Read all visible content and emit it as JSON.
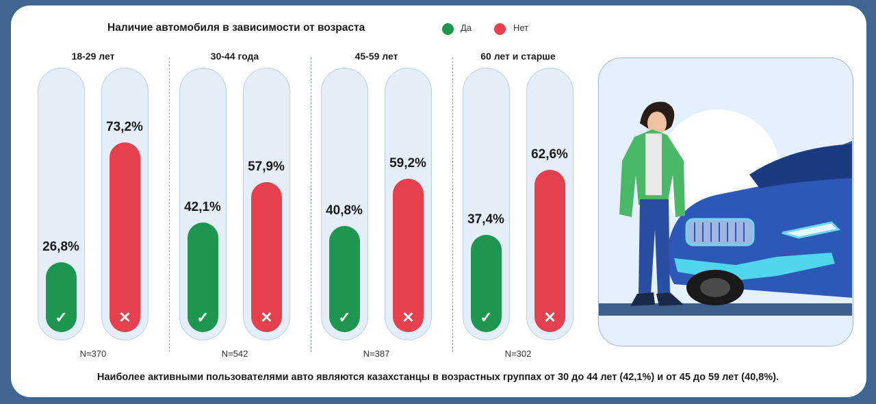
{
  "title": "Наличие автомобиля в зависимости от возраста",
  "legend": [
    {
      "label": "Да",
      "color": "#1e9650"
    },
    {
      "label": "Нет",
      "color": "#e5404e"
    }
  ],
  "marks": {
    "yes": "✓",
    "no": "✕"
  },
  "chart_data": {
    "type": "bar",
    "categories": [
      "18-29 лет",
      "30-44 года",
      "45-59 лет",
      "60 лет и старше"
    ],
    "series": [
      {
        "name": "Да",
        "values": [
          26.8,
          42.1,
          40.8,
          37.4
        ],
        "labels": [
          "26,8%",
          "42,1%",
          "40,8%",
          "37,4%"
        ]
      },
      {
        "name": "Нет",
        "values": [
          73.2,
          57.9,
          59.2,
          62.6
        ],
        "labels": [
          "73,2%",
          "57,9%",
          "59,2%",
          "62,6%"
        ]
      }
    ],
    "sample_sizes": [
      "N=370",
      "N=542",
      "N=387",
      "N=302"
    ],
    "ylim": [
      0,
      100
    ],
    "title": "Наличие автомобиля в зависимости от возраста",
    "xlabel": "",
    "ylabel": "",
    "grid": false,
    "legend_position": "top"
  },
  "footer": "Наиболее активными пользователями авто являются казахстанцы в возрастных группах от 30 до 44 лет (42,1%) и от 45 до 59 лет (40,8%).",
  "illustration": "man-standing-next-to-blue-car"
}
